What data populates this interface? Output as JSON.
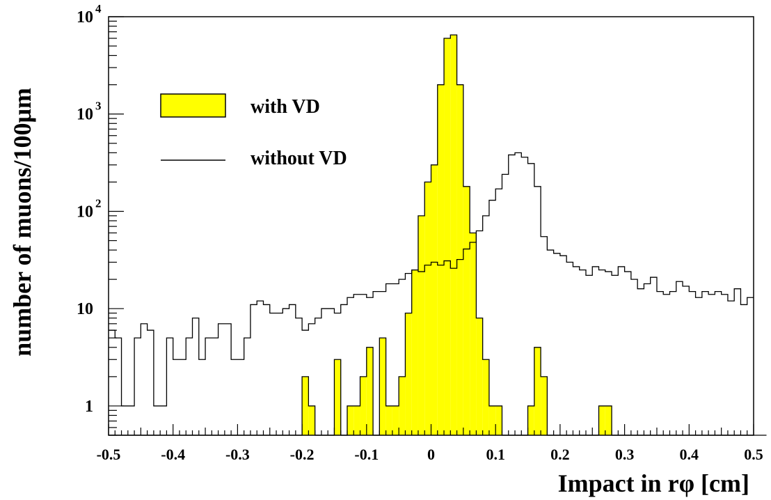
{
  "chart_data": {
    "type": "histogram",
    "xlabel": "Impact in rφ [cm]",
    "ylabel": "number of muons/100μm",
    "x_range": [
      -0.5,
      0.5
    ],
    "y_scale": "log",
    "y_range": [
      0.5,
      10000
    ],
    "bin_width": 0.01,
    "x_ticks": [
      {
        "value": -0.5,
        "label": "-0.5"
      },
      {
        "value": -0.4,
        "label": "-0.4"
      },
      {
        "value": -0.3,
        "label": "-0.3"
      },
      {
        "value": -0.2,
        "label": "-0.2"
      },
      {
        "value": -0.1,
        "label": "-0.1"
      },
      {
        "value": 0,
        "label": "0"
      },
      {
        "value": 0.1,
        "label": "0.1"
      },
      {
        "value": 0.2,
        "label": "0.2"
      },
      {
        "value": 0.3,
        "label": "0.3"
      },
      {
        "value": 0.4,
        "label": "0.4"
      },
      {
        "value": 0.5,
        "label": "0.5"
      }
    ],
    "y_ticks": [
      {
        "value": 1,
        "base": "1",
        "exp": ""
      },
      {
        "value": 10,
        "base": "10",
        "exp": ""
      },
      {
        "value": 100,
        "base": "10",
        "exp": "2"
      },
      {
        "value": 1000,
        "base": "10",
        "exp": "3"
      },
      {
        "value": 10000,
        "base": "10",
        "exp": "4"
      }
    ],
    "legend": {
      "position": "top-left",
      "entries": [
        {
          "label": "with VD",
          "style": "filled",
          "color": "#ffff00"
        },
        {
          "label": "without VD",
          "style": "line",
          "color": "#000000"
        }
      ]
    },
    "series": [
      {
        "name": "with VD",
        "style": "filled",
        "fill": "#ffff00",
        "edge": "#000000",
        "x_start": -0.5,
        "values": [
          0,
          0,
          0,
          0,
          0,
          0,
          0,
          0,
          0,
          0,
          0,
          0,
          0,
          0,
          0,
          0,
          0,
          0,
          0,
          0,
          0,
          0,
          0,
          0,
          0,
          0,
          0,
          0,
          0,
          0,
          2,
          1,
          0,
          0,
          0,
          3,
          0,
          1,
          1,
          2,
          4,
          0,
          5,
          1,
          1,
          2,
          9,
          25,
          90,
          200,
          300,
          2000,
          6000,
          6500,
          2000,
          180,
          60,
          8,
          3,
          1,
          1,
          0,
          0,
          0,
          0,
          1,
          4,
          2,
          0,
          0,
          0,
          0,
          0,
          0,
          0,
          0,
          1,
          1,
          0,
          0,
          0,
          0,
          0,
          0,
          0,
          0,
          0,
          0,
          0,
          0,
          0,
          0,
          0,
          0,
          0,
          0,
          0,
          0,
          0,
          0,
          0,
          0
        ]
      },
      {
        "name": "without VD",
        "style": "step",
        "color": "#000000",
        "x_start": -0.5,
        "values": [
          6,
          5,
          1,
          1,
          5,
          7,
          6,
          1,
          1,
          5,
          3,
          3,
          5,
          8,
          3,
          5,
          5,
          7,
          7,
          3,
          3,
          5,
          11,
          12,
          11,
          9,
          9,
          10,
          11,
          8,
          6,
          7,
          8,
          10,
          10,
          9,
          11,
          13,
          14,
          14,
          13,
          15,
          15,
          18,
          18,
          20,
          23,
          25,
          24,
          28,
          30,
          28,
          31,
          26,
          32,
          41,
          48,
          63,
          90,
          130,
          170,
          240,
          380,
          400,
          360,
          310,
          180,
          55,
          40,
          37,
          35,
          30,
          27,
          25,
          22,
          27,
          25,
          24,
          22,
          27,
          24,
          20,
          16,
          18,
          21,
          15,
          14,
          15,
          19,
          17,
          15,
          13,
          15,
          14,
          15,
          14,
          12,
          16,
          11,
          13
        ]
      }
    ]
  }
}
